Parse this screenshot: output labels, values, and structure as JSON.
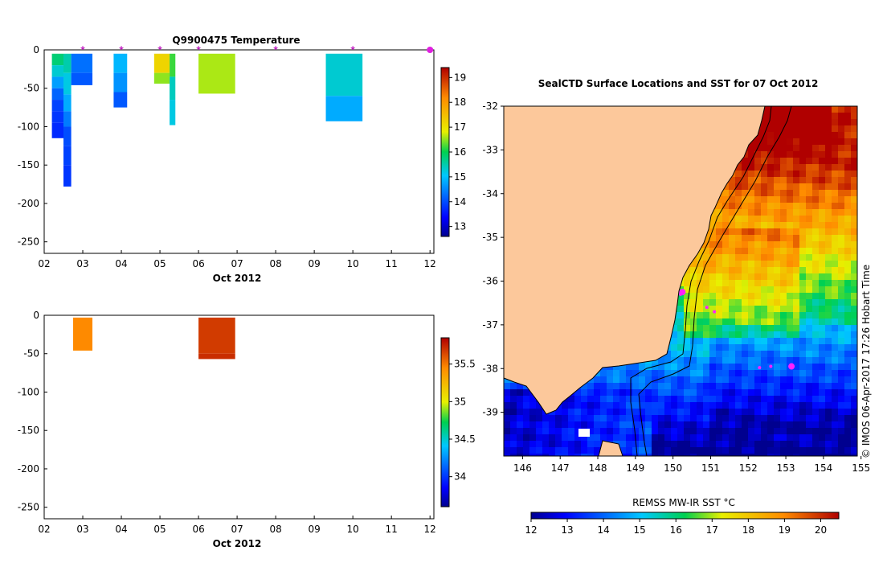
{
  "chart_data": [
    {
      "type": "depth-time-section",
      "title": "Q9900475  Temperature",
      "xlabel": "Oct 2012",
      "xlim": [
        2,
        12.1
      ],
      "x_ticks": [
        "02",
        "03",
        "04",
        "05",
        "06",
        "07",
        "08",
        "09",
        "10",
        "11",
        "12"
      ],
      "ylim": [
        -265,
        0
      ],
      "y_ticks": [
        "0",
        "-50",
        "-100",
        "-150",
        "-200",
        "-250"
      ],
      "colorbar": {
        "min": 12.6,
        "max": 19.4,
        "ticks": [
          "13",
          "14",
          "15",
          "16",
          "17",
          "18",
          "19"
        ]
      },
      "profile_marks_x": [
        3.0,
        4.0,
        5.0,
        6.0,
        8.0,
        10.0
      ],
      "latest_mark_x": 12.0,
      "profiles": [
        {
          "x0": 2.2,
          "x1": 2.5,
          "ybot": -115,
          "layers": [
            [
              -5,
              -20,
              15.8
            ],
            [
              -20,
              -35,
              15.3
            ],
            [
              -35,
              -50,
              14.7
            ],
            [
              -50,
              -65,
              14.2
            ],
            [
              -65,
              -80,
              13.9
            ],
            [
              -80,
              -95,
              13.8
            ],
            [
              -95,
              -115,
              13.7
            ]
          ]
        },
        {
          "x0": 2.5,
          "x1": 2.7,
          "ybot": -178,
          "layers": [
            [
              -5,
              -30,
              15.5
            ],
            [
              -30,
              -58,
              15.2
            ],
            [
              -58,
              -80,
              14.8
            ],
            [
              -80,
              -100,
              14.4
            ],
            [
              -100,
              -125,
              14.0
            ],
            [
              -125,
              -150,
              13.9
            ],
            [
              -150,
              -178,
              13.8
            ]
          ]
        },
        {
          "x0": 2.7,
          "x1": 3.25,
          "ybot": -46,
          "layers": [
            [
              -5,
              -30,
              14.3
            ],
            [
              -30,
              -46,
              14.1
            ]
          ]
        },
        {
          "x0": 3.8,
          "x1": 4.15,
          "ybot": -75,
          "layers": [
            [
              -5,
              -30,
              14.9
            ],
            [
              -30,
              -55,
              14.6
            ],
            [
              -55,
              -75,
              14.1
            ]
          ]
        },
        {
          "x0": 4.85,
          "x1": 5.25,
          "ybot": -44,
          "layers": [
            [
              -5,
              -30,
              17.2
            ],
            [
              -30,
              -44,
              16.5
            ]
          ]
        },
        {
          "x0": 5.25,
          "x1": 5.4,
          "ybot": -98,
          "layers": [
            [
              -5,
              -35,
              16.2
            ],
            [
              -35,
              -65,
              15.4
            ],
            [
              -65,
              -98,
              15.2
            ]
          ]
        },
        {
          "x0": 6.0,
          "x1": 6.95,
          "ybot": -57,
          "layers": [
            [
              -5,
              -57,
              16.6
            ]
          ]
        },
        {
          "x0": 9.3,
          "x1": 10.25,
          "ybot": -93,
          "layers": [
            [
              -5,
              -60,
              15.3
            ],
            [
              -60,
              -93,
              14.8
            ]
          ]
        }
      ]
    },
    {
      "type": "depth-time-section",
      "title": "",
      "xlabel": "Oct 2012",
      "xlim": [
        2,
        12.1
      ],
      "x_ticks": [
        "02",
        "03",
        "04",
        "05",
        "06",
        "07",
        "08",
        "09",
        "10",
        "11",
        "12"
      ],
      "ylim": [
        -265,
        0
      ],
      "y_ticks": [
        "0",
        "-50",
        "-100",
        "-150",
        "-200",
        "-250"
      ],
      "colorbar": {
        "min": 33.6,
        "max": 35.85,
        "ticks": [
          "34",
          "34.5",
          "35",
          "35.5"
        ]
      },
      "profiles": [
        {
          "x0": 2.75,
          "x1": 3.25,
          "ybot": -46,
          "layers": [
            [
              -3,
              -46,
              35.45
            ]
          ]
        },
        {
          "x0": 6.0,
          "x1": 6.95,
          "ybot": -57,
          "layers": [
            [
              -3,
              -50,
              35.68
            ],
            [
              -50,
              -57,
              35.72
            ]
          ]
        }
      ]
    },
    {
      "type": "map",
      "title": "SealCTD Surface Locations and SST for 07 Oct 2012",
      "xlim": [
        145.5,
        154.9
      ],
      "ylim": [
        -40.0,
        -32.0
      ],
      "x_ticks": [
        "146",
        "147",
        "148",
        "149",
        "150",
        "151",
        "152",
        "153",
        "154",
        "155"
      ],
      "y_ticks": [
        "-32",
        "-33",
        "-34",
        "-35",
        "-36",
        "-37",
        "-38",
        "-39"
      ],
      "colorbar_label": "REMSS MW-IR SST °C",
      "colorbar": {
        "min": 12,
        "max": 20.5,
        "ticks": [
          "12",
          "13",
          "14",
          "15",
          "16",
          "17",
          "18",
          "19",
          "20"
        ]
      },
      "side_label": "© IMOS 06-Apr-2017 17:26 Hobart Time",
      "locations": [
        {
          "lon": 150.25,
          "lat": -36.25,
          "large": true
        },
        {
          "lon": 150.2,
          "lat": -36.3,
          "large": false
        },
        {
          "lon": 150.9,
          "lat": -36.6,
          "large": false
        },
        {
          "lon": 151.1,
          "lat": -36.7,
          "large": false
        },
        {
          "lon": 152.3,
          "lat": -37.98,
          "large": false
        },
        {
          "lon": 152.6,
          "lat": -37.95,
          "large": false
        },
        {
          "lon": 153.15,
          "lat": -37.95,
          "large": true
        }
      ]
    }
  ]
}
